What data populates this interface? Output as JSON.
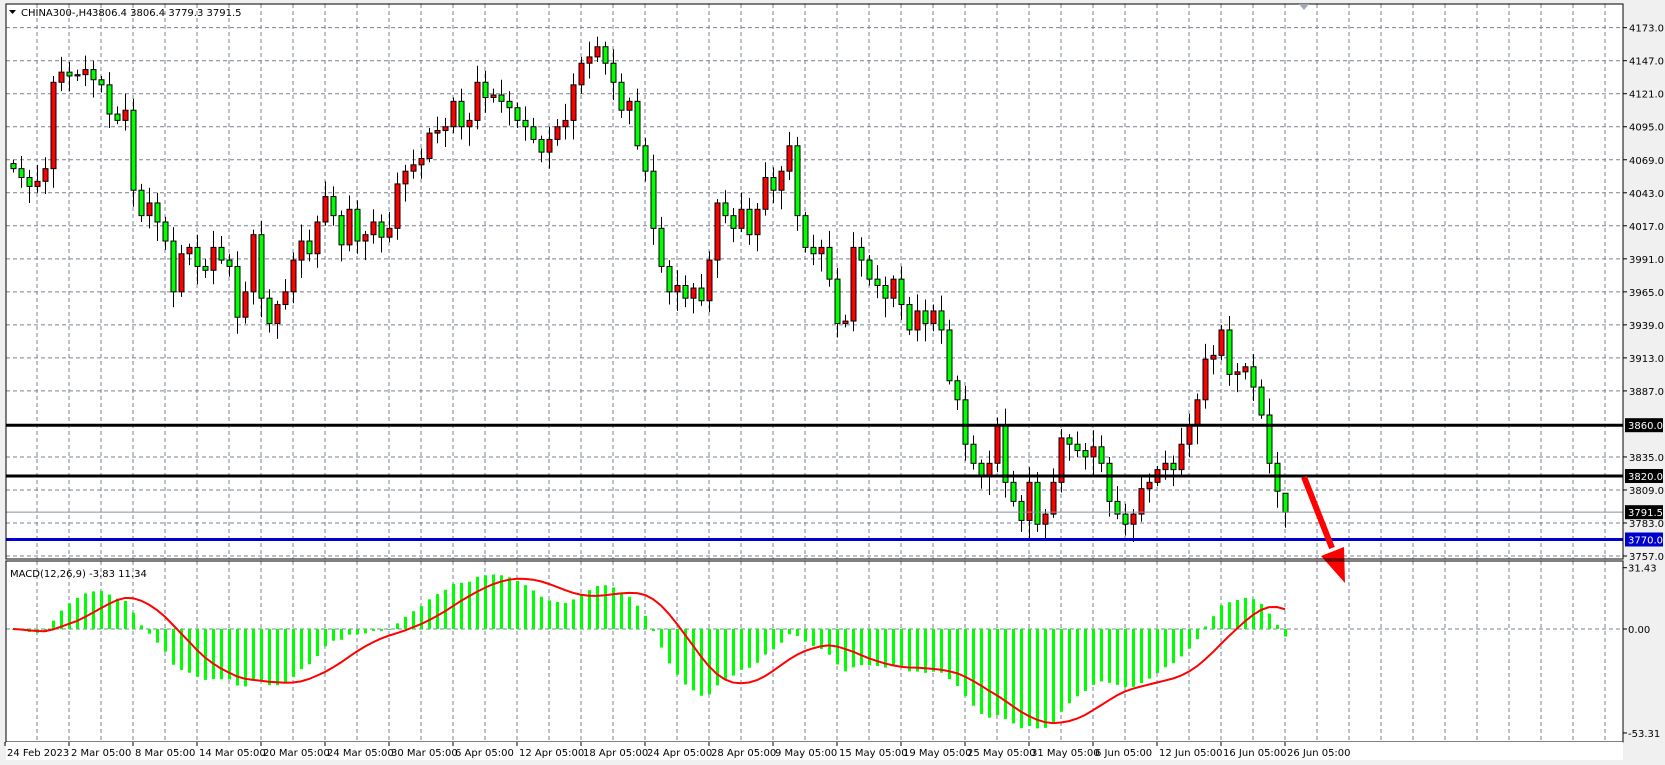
{
  "header": {
    "symbol_label": "CHINA300-,H4",
    "ohlc_label": "3806.4 3806.4 3779.3 3791.5",
    "menu_icon": "triangle-down-icon"
  },
  "indicator": {
    "label": "MACD(12,26,9) -3.83 11.34",
    "params": [
      12,
      26,
      9
    ],
    "axis_labels": [
      "31.43",
      "0.00",
      "-53.31"
    ],
    "axis_values": [
      31.43,
      0,
      -53.31
    ],
    "histogram_color": "#00ff00",
    "signal_color": "#ff0000"
  },
  "colors": {
    "bull_body": "#ff0000",
    "bear_body": "#00ff00",
    "grid": "#7a8290",
    "support_line": "#0000cc",
    "level_line": "#000000",
    "arrow": "#ff0000"
  },
  "chart_data": {
    "type": "candlestick",
    "symbol": "CHINA300-",
    "timeframe": "H4",
    "last_candle": {
      "open": 3806.4,
      "high": 3806.4,
      "low": 3779.3,
      "close": 3791.5
    },
    "close": [
      4062,
      4055,
      4048,
      4052,
      4062,
      4130,
      4138,
      4135,
      4136,
      4140,
      4132,
      4128,
      4105,
      4100,
      4108,
      4045,
      4025,
      4035,
      4020,
      4005,
      3965,
      3995,
      4000,
      3985,
      3982,
      4000,
      3990,
      3985,
      3945,
      3965,
      4010,
      3960,
      3940,
      3955,
      3965,
      3990,
      4005,
      3995,
      4020,
      4040,
      4025,
      4002,
      4030,
      4005,
      4010,
      4020,
      4008,
      4015,
      4050,
      4060,
      4065,
      4070,
      4090,
      4092,
      4095,
      4115,
      4095,
      4100,
      4130,
      4118,
      4120,
      4115,
      4110,
      4100,
      4095,
      4085,
      4075,
      4085,
      4095,
      4100,
      4128,
      4145,
      4150,
      4158,
      4145,
      4130,
      4108,
      4115,
      4080,
      4060,
      4015,
      3985,
      3965,
      3970,
      3960,
      3968,
      3958,
      3990,
      4035,
      4025,
      4015,
      4030,
      4010,
      4030,
      4055,
      4045,
      4060,
      4080,
      4025,
      4000,
      3995,
      4000,
      3975,
      3940,
      3942,
      4000,
      3990,
      3975,
      3970,
      3960,
      3975,
      3955,
      3935,
      3950,
      3940,
      3950,
      3935,
      3895,
      3880,
      3845,
      3830,
      3820,
      3830,
      3860,
      3815,
      3800,
      3785,
      3815,
      3782,
      3790,
      3815,
      3850,
      3845,
      3840,
      3835,
      3843,
      3830,
      3800,
      3790,
      3782,
      3790,
      3810,
      3815,
      3825,
      3830,
      3825,
      3845,
      3860,
      3880,
      3912,
      3915,
      3935,
      3900,
      3902,
      3906,
      3890,
      3868,
      3830,
      3808,
      3791.5
    ],
    "price_axis": {
      "range": [
        3757,
        4173
      ],
      "ticks": [
        4173,
        4147,
        4121,
        4095,
        4069,
        4043,
        4017,
        3991,
        3965,
        3939,
        3913,
        3887,
        3835,
        3809,
        3783,
        3757
      ],
      "tick_labels": [
        "4173.0",
        "4147.0",
        "4121.0",
        "4095.0",
        "4069.0",
        "4043.0",
        "4017.0",
        "3991.0",
        "3965.0",
        "3939.0",
        "3913.0",
        "3887.0",
        "3835.0",
        "3809.0",
        "3783.0",
        "3757.0"
      ]
    },
    "time_axis": {
      "tick_labels": [
        "24 Feb 2023",
        "2 Mar 05:00",
        "8 Mar 05:00",
        "14 Mar 05:00",
        "20 Mar 05:00",
        "24 Mar 05:00",
        "30 Mar 05:00",
        "6 Apr 05:00",
        "12 Apr 05:00",
        "18 Apr 05:00",
        "24 Apr 05:00",
        "28 Apr 05:00",
        "9 May 05:00",
        "15 May 05:00",
        "19 May 05:00",
        "25 May 05:00",
        "31 May 05:00",
        "6 Jun 05:00",
        "12 Jun 05:00",
        "16 Jun 05:00",
        "26 Jun 05:00"
      ]
    },
    "horizontal_levels": [
      {
        "price": 3860.0,
        "label": "3860.0",
        "style": "black-thick"
      },
      {
        "price": 3820.0,
        "label": "3820.0",
        "style": "black-thick"
      },
      {
        "price": 3791.5,
        "label": "3791.5",
        "style": "bid-line"
      },
      {
        "price": 3770.0,
        "label": "3770.0",
        "style": "blue-thick"
      }
    ],
    "annotation": {
      "type": "arrow",
      "direction": "down",
      "color": "#ff0000"
    },
    "grid": true
  }
}
